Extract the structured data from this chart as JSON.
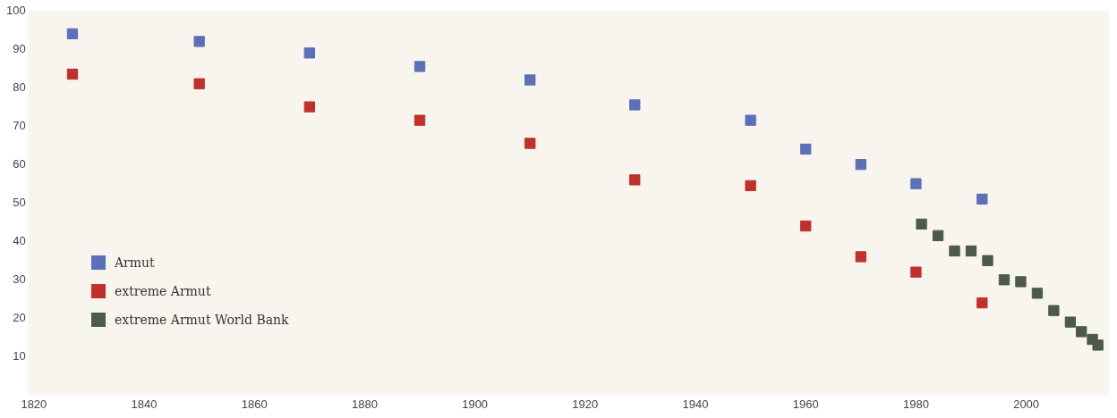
{
  "chart_data": {
    "type": "scatter",
    "marker": "square",
    "legend": "left",
    "grid": false,
    "xlim": [
      1819,
      2015
    ],
    "xticks": [
      1820,
      1840,
      1860,
      1880,
      1900,
      1920,
      1940,
      1960,
      1980,
      2000
    ],
    "ylim": [
      0,
      100
    ],
    "yticks": [
      10,
      20,
      30,
      40,
      50,
      60,
      70,
      80,
      90,
      100
    ],
    "series": [
      {
        "name": "Armut",
        "color": "#5b70b8",
        "x": [
          1827,
          1850,
          1870,
          1890,
          1910,
          1929,
          1950,
          1960,
          1970,
          1980,
          1992
        ],
        "values": [
          94,
          92,
          89,
          85.5,
          82,
          75.5,
          71.5,
          64,
          60,
          55,
          51
        ]
      },
      {
        "name": "extreme Armut",
        "color": "#c1302a",
        "x": [
          1827,
          1850,
          1870,
          1890,
          1910,
          1929,
          1950,
          1960,
          1970,
          1980,
          1992
        ],
        "values": [
          83.5,
          81,
          75,
          71.5,
          65.5,
          56,
          54.5,
          44,
          36,
          32,
          24
        ]
      },
      {
        "name": "extreme Armut World Bank",
        "color": "#4b5a4b",
        "x": [
          1981,
          1984,
          1987,
          1990,
          1993,
          1996,
          1999,
          2002,
          2005,
          2008,
          2010,
          2012,
          2013
        ],
        "values": [
          44.5,
          41.5,
          37.5,
          37.5,
          35,
          30,
          29.5,
          26.5,
          22,
          19,
          16.5,
          14.5,
          13
        ]
      }
    ]
  }
}
